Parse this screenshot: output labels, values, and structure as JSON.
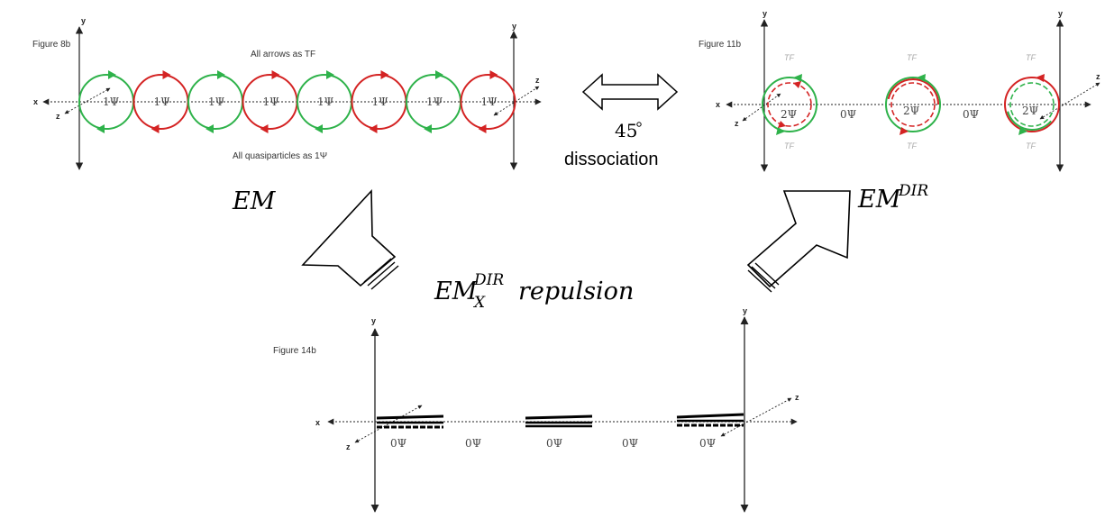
{
  "colors": {
    "green": "#2eb24a",
    "red": "#d42323",
    "axis": "#222222"
  },
  "fig8": {
    "title": "Figure 8b",
    "top_note": "All arrows as TF",
    "bottom_note": "All quasiparticles as 1Ψ",
    "psi": [
      "1Ψ",
      "1Ψ",
      "1Ψ",
      "1Ψ",
      "1Ψ",
      "1Ψ",
      "1Ψ",
      "1Ψ"
    ],
    "circle_colors": [
      "green",
      "red",
      "green",
      "red",
      "green",
      "red",
      "green",
      "red"
    ],
    "axis_x": "x",
    "axis_y": "y",
    "axis_z": "z"
  },
  "fig11": {
    "title": "Figure 11b",
    "tf": "TF",
    "psi": [
      "2Ψ",
      "0Ψ",
      "2Ψ",
      "0Ψ",
      "2Ψ"
    ],
    "axis_x": "x",
    "axis_y": "y",
    "axis_z": "z"
  },
  "fig14": {
    "title": "Figure 14b",
    "psi": [
      "0Ψ",
      "0Ψ",
      "0Ψ",
      "0Ψ",
      "0Ψ"
    ],
    "axis_x": "x",
    "axis_y": "y",
    "axis_z": "z"
  },
  "labels": {
    "angle": "45",
    "dissociation": "dissociation",
    "em": "EM",
    "em_dir_base": "EM",
    "em_dir_sup": "DIR",
    "repulsion_base": "EM",
    "repulsion_sup": "DIR",
    "repulsion_sub": "X",
    "repulsion_word": "repulsion"
  }
}
